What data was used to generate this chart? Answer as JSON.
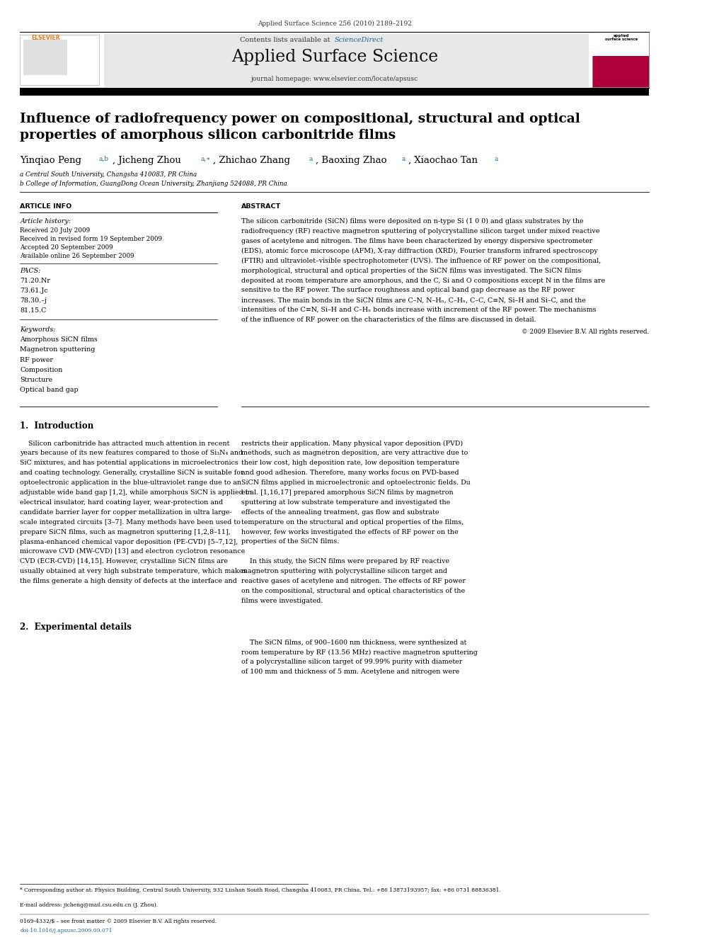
{
  "page_width": 9.92,
  "page_height": 13.23,
  "background_color": "#ffffff",
  "header_journal_ref": "Applied Surface Science 256 (2010) 2189–2192",
  "header_contents": "Contents lists available at ",
  "header_sciencedirect": "ScienceDirect",
  "header_sciencedirect_color": "#1a6496",
  "header_journal_name": "Applied Surface Science",
  "header_homepage": "journal homepage: www.elsevier.com/locate/apsusc",
  "header_bg_color": "#e8e8e8",
  "title": "Influence of radiofrequency power on compositional, structural and optical\nproperties of amorphous silicon carbonitride films",
  "affil_a": "a Central South University, Changsha 410083, PR China",
  "affil_b": "b College of Information, GuangDong Ocean University, Zhanjiang 524088, PR China",
  "section_article_info": "ARTICLE INFO",
  "section_abstract": "ABSTRACT",
  "article_history_label": "Article history:",
  "received": "Received 20 July 2009",
  "received_revised": "Received in revised form 19 September 2009",
  "accepted": "Accepted 20 September 2009",
  "available": "Available online 26 September 2009",
  "pacs_label": "PACS:",
  "pacs_codes": [
    "71.20.Nr",
    "73.61.Jc",
    "78.30.–j",
    "81.15.C"
  ],
  "keywords_label": "Keywords:",
  "keywords": [
    "Amorphous SiCN films",
    "Magnetron sputtering",
    "RF power",
    "Composition",
    "Structure",
    "Optical band gap"
  ],
  "copyright": "© 2009 Elsevier B.V. All rights reserved.",
  "intro_heading": "1.  Introduction",
  "exp_heading": "2.  Experimental details",
  "footer_left": "0169-4332/$ – see front matter © 2009 Elsevier B.V. All rights reserved.",
  "footer_doi": "doi:10.1016/j.apsusc.2009.09.071",
  "footnote_star": "* Corresponding author at: Physics Building, Central South University, 932 Lushan South Road, Changsha 410083, PR China. Tel.: +86 13873193957; fax: +86 0731 88836381.",
  "footnote_email": "E-mail address: jicheng@mail.csu.edu.cn (J. Zhou).",
  "elsevier_color": "#e87722",
  "link_color": "#1a6496"
}
